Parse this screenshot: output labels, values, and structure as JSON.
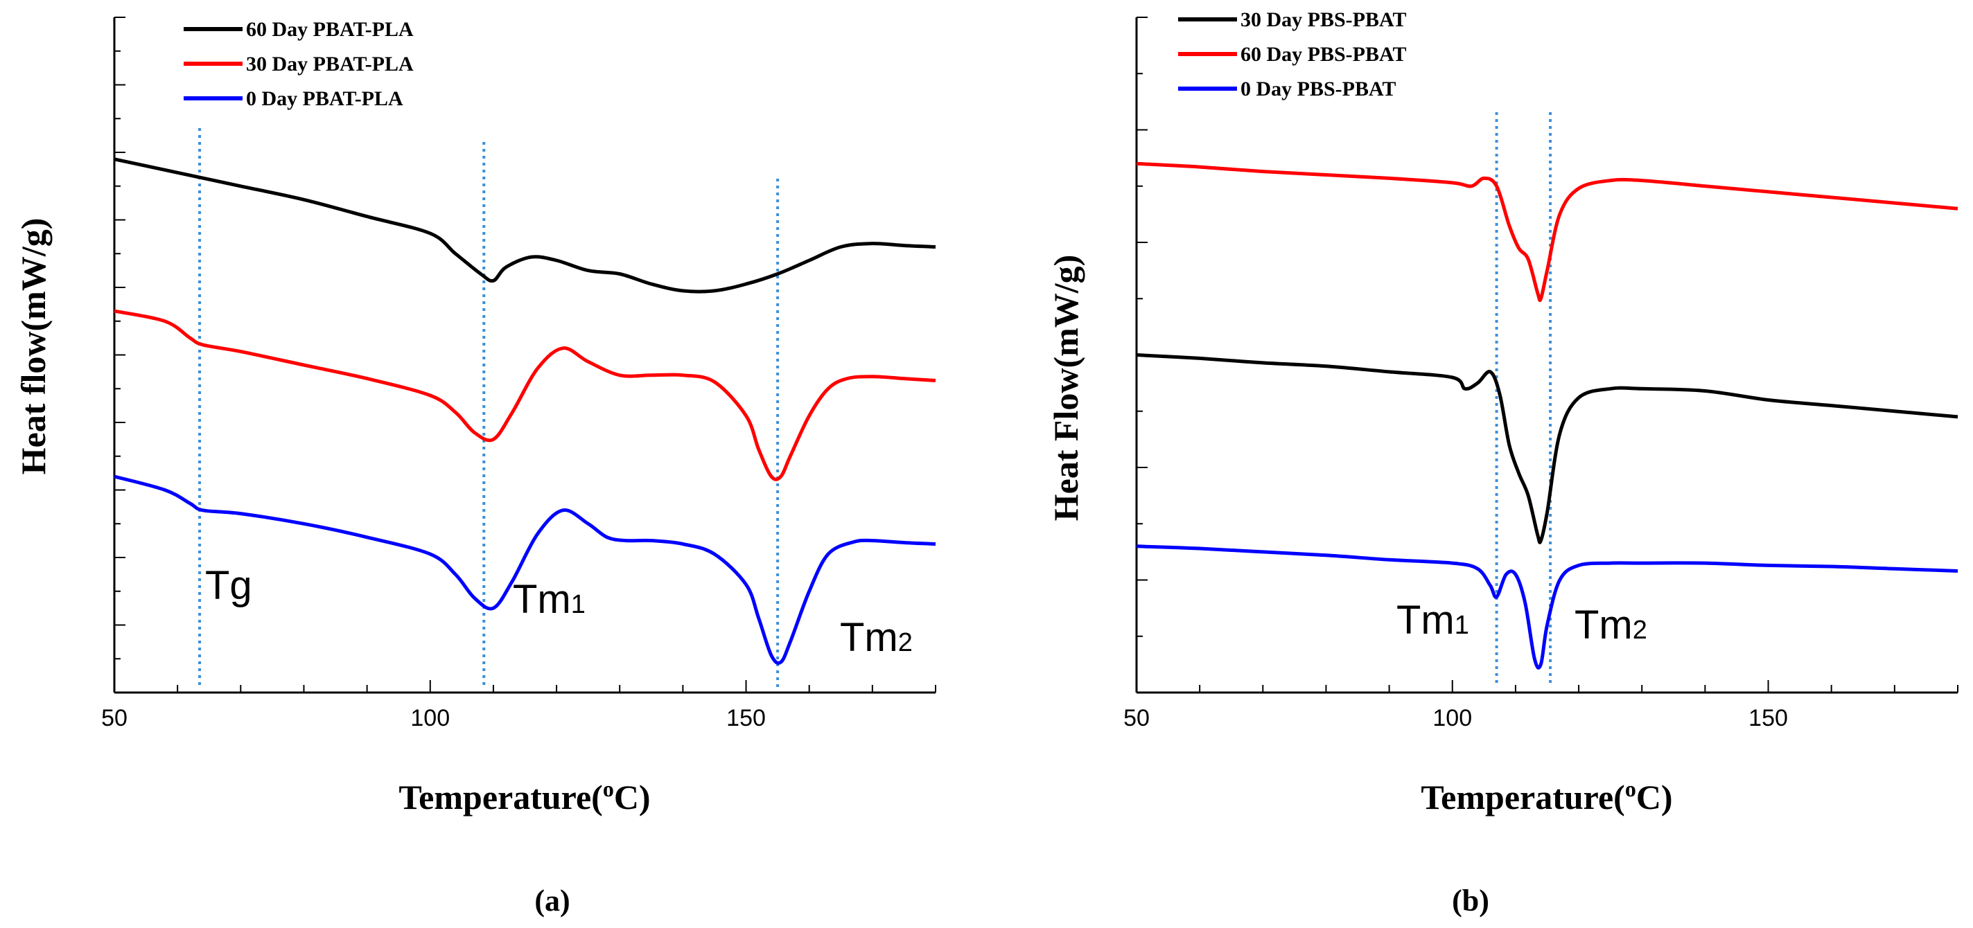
{
  "chart_data": [
    {
      "panel": "a",
      "panel_label": "(a)",
      "type": "line",
      "xlabel": "Temperature(",
      "xlabel_sup": "o",
      "xlabel_unit": "C)",
      "ylabel": "Heat flow(mW/g)",
      "xlim": [
        50,
        180
      ],
      "xticks": [
        50,
        100,
        150
      ],
      "ylim": [
        0,
        10
      ],
      "y_ticklabels": "none",
      "legend": "top-left",
      "series": [
        {
          "name": "60 Day PBAT-PLA",
          "color": "#000000",
          "x": [
            50,
            60,
            70,
            80,
            90,
            100,
            104,
            108,
            110,
            112,
            116,
            120,
            125,
            130,
            135,
            140,
            145,
            150,
            155,
            160,
            165,
            170,
            175,
            180
          ],
          "y": [
            7.9,
            7.7,
            7.5,
            7.3,
            7.05,
            6.8,
            6.5,
            6.2,
            6.1,
            6.3,
            6.45,
            6.4,
            6.25,
            6.2,
            6.05,
            5.95,
            5.95,
            6.05,
            6.2,
            6.4,
            6.6,
            6.65,
            6.62,
            6.6
          ]
        },
        {
          "name": "30 Day PBAT-PLA",
          "color": "#ff0000",
          "x": [
            50,
            58,
            62,
            64,
            70,
            80,
            90,
            100,
            104,
            107,
            110,
            113,
            117,
            121,
            125,
            130,
            135,
            140,
            145,
            150,
            152,
            154,
            155.5,
            157,
            160,
            163,
            166,
            170,
            175,
            180
          ],
          "y": [
            5.65,
            5.5,
            5.25,
            5.15,
            5.05,
            4.85,
            4.65,
            4.4,
            4.15,
            3.85,
            3.75,
            4.15,
            4.8,
            5.1,
            4.9,
            4.7,
            4.7,
            4.7,
            4.6,
            4.1,
            3.6,
            3.2,
            3.2,
            3.5,
            4.1,
            4.5,
            4.65,
            4.68,
            4.65,
            4.62
          ],
          "marks": [
            "Tg",
            "Tm1",
            "Tm2"
          ]
        },
        {
          "name": "0 Day PBAT-PLA",
          "color": "#0000ff",
          "x": [
            50,
            58,
            62,
            64,
            70,
            80,
            90,
            100,
            104,
            107,
            110,
            113,
            117,
            121,
            125,
            128,
            131,
            135,
            140,
            145,
            150,
            152,
            154,
            155.5,
            157,
            160,
            163,
            167,
            170,
            175,
            180
          ],
          "y": [
            3.2,
            3.0,
            2.8,
            2.7,
            2.65,
            2.5,
            2.3,
            2.05,
            1.75,
            1.4,
            1.25,
            1.65,
            2.35,
            2.7,
            2.5,
            2.3,
            2.25,
            2.25,
            2.2,
            2.05,
            1.6,
            1.1,
            0.55,
            0.45,
            0.75,
            1.5,
            2.05,
            2.23,
            2.25,
            2.22,
            2.2
          ]
        }
      ],
      "vlines": [
        {
          "x": 63.5,
          "label": "Tg",
          "label_sub": ""
        },
        {
          "x": 108.5,
          "label": "Tm",
          "label_sub": "1"
        },
        {
          "x": 155,
          "label": "Tm",
          "label_sub": "2"
        }
      ]
    },
    {
      "panel": "b",
      "panel_label": "(b)",
      "type": "line",
      "xlabel": "Temperature(",
      "xlabel_sup": "o",
      "xlabel_unit": "C)",
      "ylabel": "Heat Flow(mW/g)",
      "xlim": [
        50,
        180
      ],
      "xticks": [
        50,
        100,
        150
      ],
      "ylim": [
        0,
        6
      ],
      "y_ticklabels": "none",
      "legend": "top-left",
      "series": [
        {
          "name": "30 Day PBS-PBAT",
          "color": "#000000",
          "x": [
            50,
            60,
            70,
            80,
            90,
            100,
            102,
            104,
            106,
            107.5,
            109,
            110.5,
            112,
            113.5,
            114,
            115,
            117,
            120,
            125,
            130,
            140,
            150,
            160,
            170,
            180
          ],
          "y": [
            3.0,
            2.97,
            2.93,
            2.9,
            2.85,
            2.8,
            2.7,
            2.75,
            2.85,
            2.65,
            2.2,
            1.95,
            1.75,
            1.4,
            1.35,
            1.6,
            2.3,
            2.62,
            2.7,
            2.7,
            2.68,
            2.6,
            2.55,
            2.5,
            2.45
          ]
        },
        {
          "name": "60 Day PBS-PBAT",
          "color": "#ff0000",
          "x": [
            50,
            60,
            70,
            80,
            90,
            100,
            103,
            105,
            107,
            109,
            110.5,
            112,
            113.5,
            114,
            115,
            117,
            120,
            125,
            130,
            140,
            150,
            160,
            170,
            180
          ],
          "y": [
            4.7,
            4.67,
            4.63,
            4.6,
            4.57,
            4.53,
            4.5,
            4.57,
            4.5,
            4.15,
            3.95,
            3.85,
            3.55,
            3.5,
            3.75,
            4.25,
            4.48,
            4.55,
            4.55,
            4.5,
            4.45,
            4.4,
            4.35,
            4.3
          ]
        },
        {
          "name": "0 Day PBS-PBAT",
          "color": "#0000ff",
          "x": [
            50,
            60,
            70,
            80,
            90,
            100,
            104,
            106,
            107,
            108.5,
            110,
            111.5,
            113,
            114,
            115,
            117,
            120,
            125,
            130,
            140,
            150,
            160,
            170,
            180
          ],
          "y": [
            1.3,
            1.28,
            1.25,
            1.22,
            1.18,
            1.15,
            1.1,
            0.95,
            0.85,
            1.05,
            1.05,
            0.8,
            0.3,
            0.25,
            0.6,
            1.0,
            1.13,
            1.15,
            1.15,
            1.15,
            1.13,
            1.12,
            1.1,
            1.08
          ]
        }
      ],
      "vlines": [
        {
          "x": 107,
          "label": "Tm",
          "label_sub": "1"
        },
        {
          "x": 115.5,
          "label": "Tm",
          "label_sub": "2"
        }
      ]
    }
  ]
}
